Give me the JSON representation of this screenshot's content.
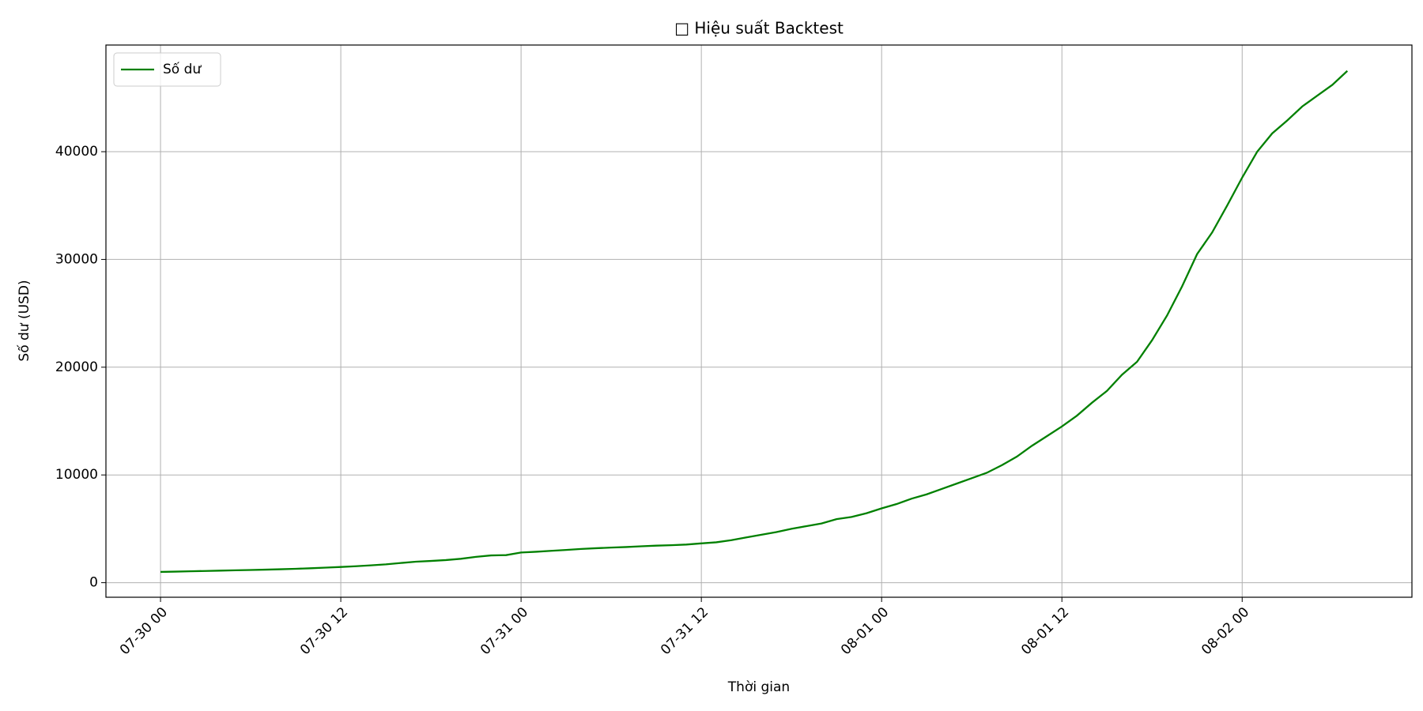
{
  "chart_data": {
    "type": "line",
    "title": "□ Hiệu suất Backtest",
    "xlabel": "Thời gian",
    "ylabel": "Số dư (USD)",
    "x": [
      "07-30 00",
      "07-30 01",
      "07-30 02",
      "07-30 03",
      "07-30 04",
      "07-30 05",
      "07-30 06",
      "07-30 07",
      "07-30 08",
      "07-30 09",
      "07-30 10",
      "07-30 11",
      "07-30 12",
      "07-30 13",
      "07-30 14",
      "07-30 15",
      "07-30 16",
      "07-30 17",
      "07-30 18",
      "07-30 19",
      "07-30 20",
      "07-30 21",
      "07-30 22",
      "07-30 23",
      "07-31 00",
      "07-31 01",
      "07-31 02",
      "07-31 03",
      "07-31 04",
      "07-31 05",
      "07-31 06",
      "07-31 07",
      "07-31 08",
      "07-31 09",
      "07-31 10",
      "07-31 11",
      "07-31 12",
      "07-31 13",
      "07-31 14",
      "07-31 15",
      "07-31 16",
      "07-31 17",
      "07-31 18",
      "07-31 19",
      "07-31 20",
      "07-31 21",
      "07-31 22",
      "07-31 23",
      "08-01 00",
      "08-01 01",
      "08-01 02",
      "08-01 03",
      "08-01 04",
      "08-01 05",
      "08-01 06",
      "08-01 07",
      "08-01 08",
      "08-01 09",
      "08-01 10",
      "08-01 11",
      "08-01 12",
      "08-01 13",
      "08-01 14",
      "08-01 15",
      "08-01 16",
      "08-01 17",
      "08-01 18",
      "08-01 19",
      "08-01 20",
      "08-01 21",
      "08-01 22",
      "08-01 23",
      "08-02 00",
      "08-02 01",
      "08-02 02",
      "08-02 03",
      "08-02 04",
      "08-02 05",
      "08-02 06",
      "08-02 07"
    ],
    "series": [
      {
        "name": "Số dư",
        "color": "#008000",
        "values": [
          1000,
          1030,
          1060,
          1090,
          1120,
          1150,
          1180,
          1210,
          1250,
          1290,
          1340,
          1400,
          1460,
          1530,
          1610,
          1700,
          1830,
          1950,
          2020,
          2100,
          2220,
          2400,
          2530,
          2560,
          2800,
          2870,
          2960,
          3040,
          3130,
          3200,
          3260,
          3310,
          3380,
          3440,
          3480,
          3540,
          3650,
          3750,
          3950,
          4200,
          4450,
          4700,
          5000,
          5250,
          5500,
          5900,
          6100,
          6450,
          6900,
          7300,
          7800,
          8200,
          8700,
          9200,
          9700,
          10200,
          10900,
          11700,
          12700,
          13600,
          14500,
          15500,
          16700,
          17800,
          19300,
          20500,
          22500,
          24800,
          27500,
          30500,
          32500,
          35000,
          37600,
          40000,
          41700,
          42900,
          44200,
          45200,
          46200,
          47500
        ]
      }
    ],
    "xlim": [
      "07-29 20:22",
      "08-02 11:18"
    ],
    "xticks": [
      "07-30 00",
      "07-30 12",
      "07-31 00",
      "07-31 12",
      "08-01 00",
      "08-01 12",
      "08-02 00"
    ],
    "ylim": [
      -1350,
      49900
    ],
    "yticks": [
      0,
      10000,
      20000,
      30000,
      40000
    ],
    "grid": true,
    "legend": "upper left"
  }
}
